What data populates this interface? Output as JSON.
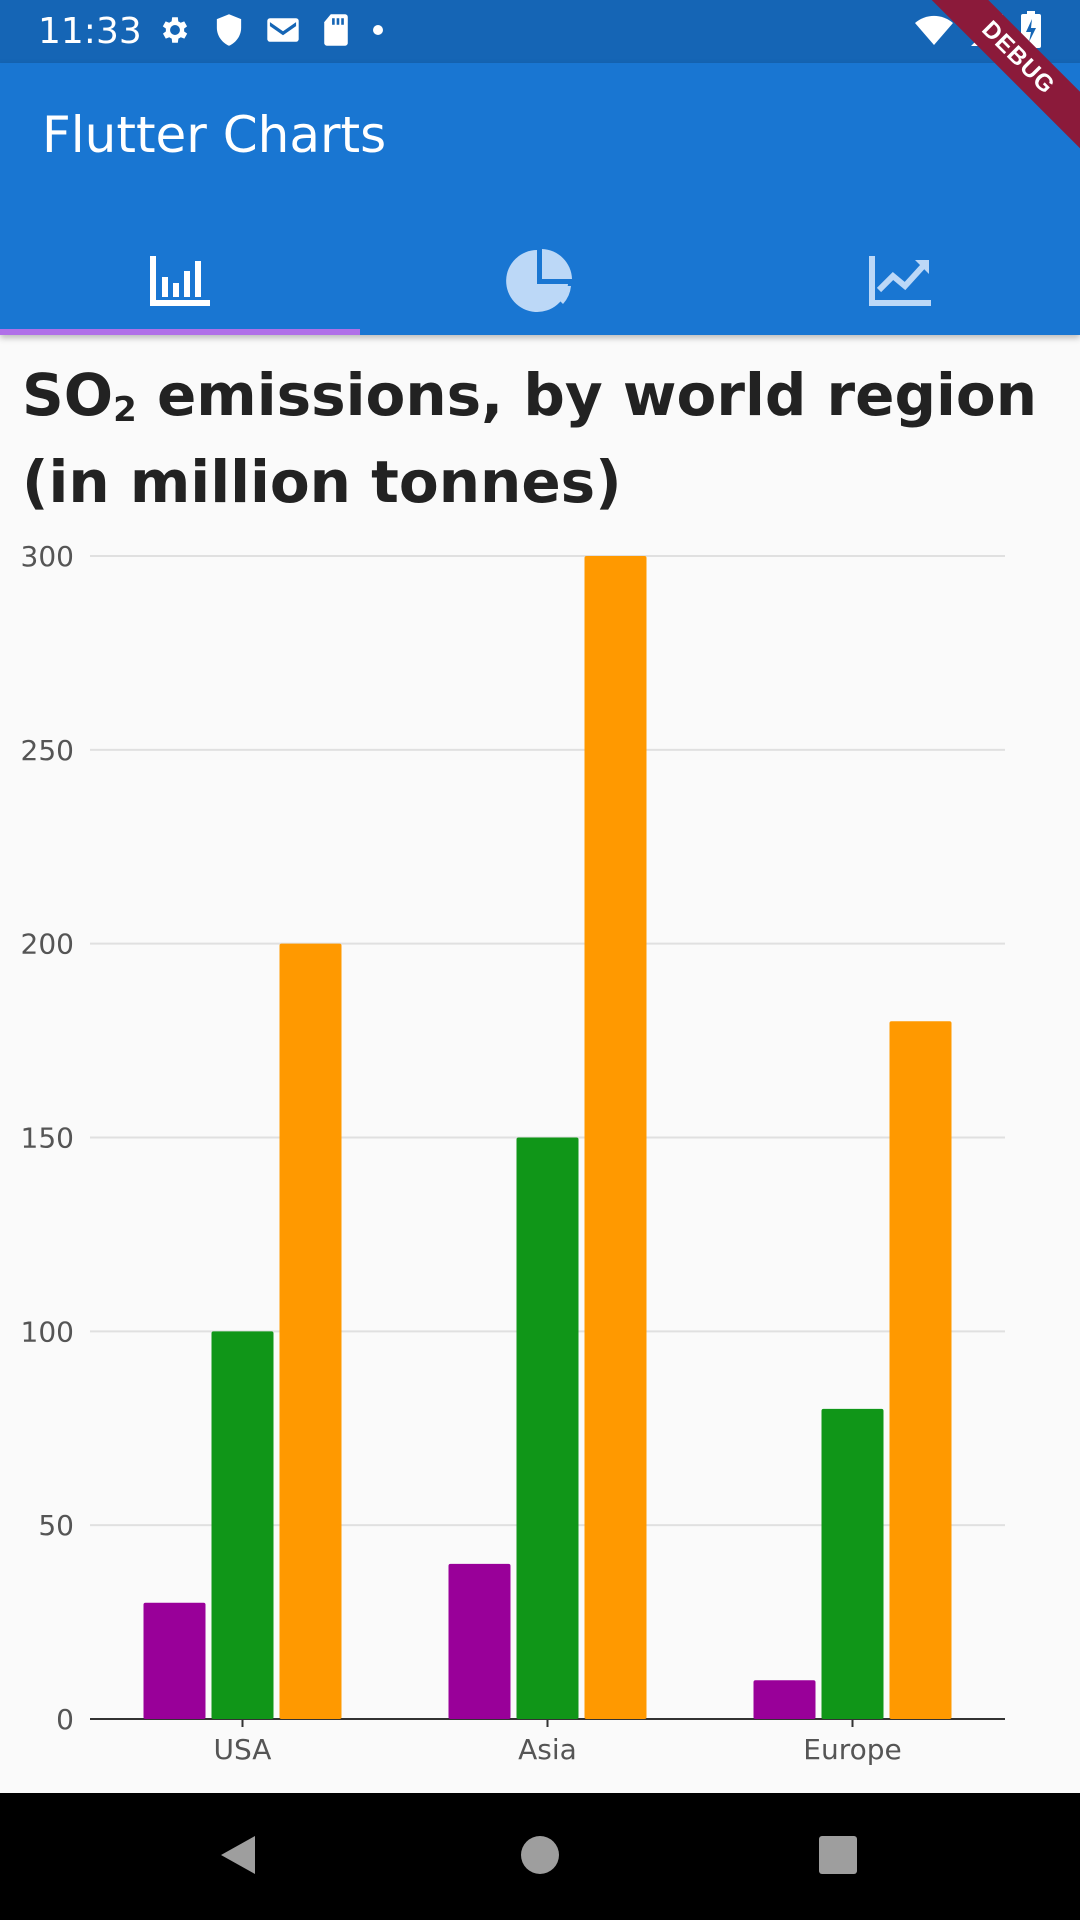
{
  "status_bar": {
    "time": "11:33",
    "icons_left": [
      "gear-icon",
      "shield-icon",
      "gmail-icon",
      "sd-card-icon",
      "dot-icon"
    ],
    "icons_right": [
      "wifi-icon",
      "signal-icon",
      "battery-charging-icon"
    ],
    "debug_label": "DEBUG"
  },
  "app_bar": {
    "title": "Flutter Charts",
    "tabs": [
      {
        "icon": "bar-chart-icon",
        "selected": true
      },
      {
        "icon": "pie-chart-icon",
        "selected": false
      },
      {
        "icon": "line-chart-icon",
        "selected": false
      }
    ]
  },
  "colors": {
    "status_bar": "#1565b5",
    "app_bar": "#1976d2",
    "indicator": "#b070e8",
    "series_1": "#990099",
    "series_2": "#109618",
    "series_3": "#ff9900"
  },
  "chart_data": {
    "type": "bar",
    "title_main": "SO",
    "title_sub": "2",
    "title_rest": " emissions, by world region (in million tonnes)",
    "categories": [
      "USA",
      "Asia",
      "Europe"
    ],
    "series": [
      {
        "values": [
          30,
          40,
          10
        ],
        "color": "#990099"
      },
      {
        "values": [
          100,
          150,
          80
        ],
        "color": "#109618"
      },
      {
        "values": [
          200,
          300,
          180
        ],
        "color": "#ff9900"
      }
    ],
    "ylim": [
      0,
      300
    ],
    "yticks": [
      "0",
      "50",
      "100",
      "150",
      "200",
      "250",
      "300"
    ],
    "grid": true
  },
  "nav_bar": {
    "buttons": [
      "back-icon",
      "home-icon",
      "recents-icon"
    ]
  }
}
